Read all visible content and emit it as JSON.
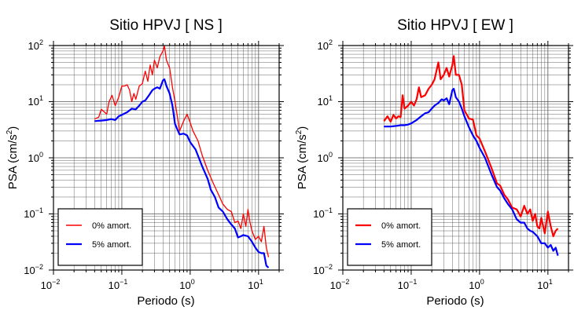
{
  "colors": {
    "undamped": "#ff0000",
    "damped": "#0000ff",
    "frame": "#000000",
    "grid": "#555555"
  },
  "chart_data": [
    {
      "type": "line",
      "title": "Sitio HPVJ [ NS ]",
      "xlabel": "Periodo (s)",
      "ylabel_main": "PSA (cm/s",
      "ylabel_sup": "2",
      "ylabel_close": ")",
      "xscale": "log",
      "yscale": "log",
      "xlim": [
        0.01,
        20
      ],
      "ylim": [
        0.01,
        100
      ],
      "x_ticks": [
        {
          "base": "10",
          "exp": "−2"
        },
        {
          "base": "10",
          "exp": "−1"
        },
        {
          "base": "10",
          "exp": "0"
        },
        {
          "base": "10",
          "exp": "1"
        }
      ],
      "y_ticks": [
        {
          "base": "10",
          "exp": "−2"
        },
        {
          "base": "10",
          "exp": "−1"
        },
        {
          "base": "10",
          "exp": "0"
        },
        {
          "base": "10",
          "exp": "1"
        },
        {
          "base": "10",
          "exp": "2"
        }
      ],
      "grid": true,
      "legend_position": "bottom-left",
      "series": [
        {
          "name": "0% amort.",
          "color": "#ff0000",
          "points": [
            [
              0.04,
              4.9
            ],
            [
              0.046,
              5.3
            ],
            [
              0.05,
              7.3
            ],
            [
              0.055,
              6.6
            ],
            [
              0.06,
              6.0
            ],
            [
              0.065,
              10
            ],
            [
              0.072,
              13
            ],
            [
              0.08,
              8.5
            ],
            [
              0.09,
              12
            ],
            [
              0.1,
              19
            ],
            [
              0.11,
              19
            ],
            [
              0.12,
              20
            ],
            [
              0.13,
              16
            ],
            [
              0.14,
              10
            ],
            [
              0.15,
              14
            ],
            [
              0.16,
              11
            ],
            [
              0.18,
              19
            ],
            [
              0.2,
              21
            ],
            [
              0.22,
              35
            ],
            [
              0.24,
              23
            ],
            [
              0.26,
              45
            ],
            [
              0.28,
              30
            ],
            [
              0.3,
              55
            ],
            [
              0.33,
              40
            ],
            [
              0.36,
              63
            ],
            [
              0.4,
              80
            ],
            [
              0.42,
              98
            ],
            [
              0.45,
              55
            ],
            [
              0.5,
              40
            ],
            [
              0.55,
              18
            ],
            [
              0.6,
              10
            ],
            [
              0.7,
              3.0
            ],
            [
              0.8,
              4.5
            ],
            [
              0.9,
              6.0
            ],
            [
              1.0,
              4.2
            ],
            [
              1.1,
              3.0
            ],
            [
              1.3,
              2.0
            ],
            [
              1.5,
              1.1
            ],
            [
              1.8,
              0.6
            ],
            [
              2.2,
              0.34
            ],
            [
              2.6,
              0.22
            ],
            [
              3.0,
              0.15
            ],
            [
              3.5,
              0.12
            ],
            [
              4.0,
              0.11
            ],
            [
              4.5,
              0.07
            ],
            [
              5.0,
              0.075
            ],
            [
              5.5,
              0.055
            ],
            [
              6.0,
              0.1
            ],
            [
              6.5,
              0.06
            ],
            [
              7.0,
              0.12
            ],
            [
              7.5,
              0.07
            ],
            [
              8.0,
              0.05
            ],
            [
              9.0,
              0.035
            ],
            [
              10.0,
              0.04
            ],
            [
              11.0,
              0.032
            ],
            [
              12.0,
              0.06
            ],
            [
              13.0,
              0.025
            ],
            [
              14.0,
              0.017
            ]
          ]
        },
        {
          "name": "5% amort.",
          "color": "#0000ff",
          "points": [
            [
              0.04,
              4.5
            ],
            [
              0.05,
              4.6
            ],
            [
              0.06,
              4.7
            ],
            [
              0.07,
              4.9
            ],
            [
              0.08,
              4.7
            ],
            [
              0.09,
              5.5
            ],
            [
              0.1,
              5.8
            ],
            [
              0.12,
              6.5
            ],
            [
              0.14,
              7.5
            ],
            [
              0.16,
              7.3
            ],
            [
              0.18,
              8.5
            ],
            [
              0.2,
              10
            ],
            [
              0.22,
              10.5
            ],
            [
              0.25,
              13
            ],
            [
              0.28,
              16
            ],
            [
              0.3,
              17
            ],
            [
              0.33,
              18
            ],
            [
              0.36,
              17
            ],
            [
              0.4,
              24
            ],
            [
              0.42,
              25
            ],
            [
              0.45,
              19
            ],
            [
              0.5,
              14
            ],
            [
              0.55,
              8.5
            ],
            [
              0.6,
              4.0
            ],
            [
              0.7,
              2.6
            ],
            [
              0.8,
              2.7
            ],
            [
              0.9,
              2.5
            ],
            [
              1.0,
              1.9
            ],
            [
              1.2,
              1.4
            ],
            [
              1.5,
              0.7
            ],
            [
              1.8,
              0.42
            ],
            [
              2.0,
              0.27
            ],
            [
              2.3,
              0.2
            ],
            [
              2.6,
              0.13
            ],
            [
              3.0,
              0.11
            ],
            [
              3.5,
              0.08
            ],
            [
              4.0,
              0.065
            ],
            [
              4.5,
              0.055
            ],
            [
              5.0,
              0.038
            ],
            [
              5.5,
              0.04
            ],
            [
              6.0,
              0.042
            ],
            [
              7.0,
              0.04
            ],
            [
              8.0,
              0.032
            ],
            [
              9.0,
              0.025
            ],
            [
              10.0,
              0.021
            ],
            [
              11.0,
              0.02
            ],
            [
              12.0,
              0.02
            ],
            [
              13.0,
              0.012
            ],
            [
              14.0,
              0.011
            ]
          ]
        }
      ]
    },
    {
      "type": "line",
      "title": "Sitio HPVJ [ EW ]",
      "xlabel": "Periodo (s)",
      "ylabel_main": "PSA (cm/s",
      "ylabel_sup": "2",
      "ylabel_close": ")",
      "xscale": "log",
      "yscale": "log",
      "xlim": [
        0.01,
        20
      ],
      "ylim": [
        0.01,
        100
      ],
      "x_ticks": [
        {
          "base": "10",
          "exp": "−2"
        },
        {
          "base": "10",
          "exp": "−1"
        },
        {
          "base": "10",
          "exp": "0"
        },
        {
          "base": "10",
          "exp": "1"
        }
      ],
      "y_ticks": [
        {
          "base": "10",
          "exp": "−2"
        },
        {
          "base": "10",
          "exp": "−1"
        },
        {
          "base": "10",
          "exp": "0"
        },
        {
          "base": "10",
          "exp": "1"
        },
        {
          "base": "10",
          "exp": "2"
        }
      ],
      "grid": true,
      "legend_position": "bottom-left",
      "series": [
        {
          "name": "0% amort.",
          "color": "#ff0000",
          "points": [
            [
              0.04,
              4.5
            ],
            [
              0.045,
              5.5
            ],
            [
              0.05,
              4.4
            ],
            [
              0.055,
              5.8
            ],
            [
              0.06,
              5.0
            ],
            [
              0.065,
              5.5
            ],
            [
              0.07,
              5.3
            ],
            [
              0.075,
              13
            ],
            [
              0.08,
              7.5
            ],
            [
              0.09,
              8.5
            ],
            [
              0.1,
              10
            ],
            [
              0.11,
              8.5
            ],
            [
              0.12,
              11
            ],
            [
              0.13,
              18
            ],
            [
              0.14,
              12
            ],
            [
              0.16,
              13
            ],
            [
              0.18,
              17
            ],
            [
              0.2,
              20
            ],
            [
              0.22,
              25
            ],
            [
              0.25,
              50
            ],
            [
              0.27,
              25
            ],
            [
              0.3,
              30
            ],
            [
              0.33,
              40
            ],
            [
              0.36,
              28
            ],
            [
              0.4,
              45
            ],
            [
              0.42,
              65
            ],
            [
              0.45,
              30
            ],
            [
              0.5,
              30
            ],
            [
              0.55,
              20
            ],
            [
              0.6,
              7.0
            ],
            [
              0.7,
              5.0
            ],
            [
              0.8,
              4.8
            ],
            [
              0.9,
              2.5
            ],
            [
              1.0,
              2.2
            ],
            [
              1.2,
              1.3
            ],
            [
              1.5,
              0.65
            ],
            [
              1.8,
              0.35
            ],
            [
              2.0,
              0.32
            ],
            [
              2.3,
              0.22
            ],
            [
              2.6,
              0.18
            ],
            [
              3.0,
              0.13
            ],
            [
              3.5,
              0.12
            ],
            [
              4.0,
              0.09
            ],
            [
              4.5,
              0.14
            ],
            [
              5.0,
              0.1
            ],
            [
              5.5,
              0.12
            ],
            [
              6.0,
              0.075
            ],
            [
              6.5,
              0.1
            ],
            [
              7.0,
              0.06
            ],
            [
              7.5,
              0.055
            ],
            [
              8.0,
              0.085
            ],
            [
              9.0,
              0.045
            ],
            [
              10.0,
              0.11
            ],
            [
              11.0,
              0.06
            ],
            [
              12.0,
              0.04
            ],
            [
              13.0,
              0.05
            ],
            [
              14.0,
              0.055
            ]
          ]
        },
        {
          "name": "5% amort.",
          "color": "#0000ff",
          "points": [
            [
              0.04,
              3.6
            ],
            [
              0.05,
              3.6
            ],
            [
              0.06,
              3.7
            ],
            [
              0.07,
              3.8
            ],
            [
              0.08,
              3.8
            ],
            [
              0.09,
              3.9
            ],
            [
              0.1,
              4.1
            ],
            [
              0.12,
              4.7
            ],
            [
              0.14,
              5.5
            ],
            [
              0.16,
              6.2
            ],
            [
              0.18,
              6.5
            ],
            [
              0.2,
              7.5
            ],
            [
              0.22,
              8.5
            ],
            [
              0.25,
              9.5
            ],
            [
              0.28,
              11
            ],
            [
              0.3,
              10.5
            ],
            [
              0.33,
              11.5
            ],
            [
              0.36,
              9.0
            ],
            [
              0.4,
              16
            ],
            [
              0.42,
              17
            ],
            [
              0.45,
              12
            ],
            [
              0.5,
              10
            ],
            [
              0.55,
              7.5
            ],
            [
              0.6,
              5.5
            ],
            [
              0.7,
              3.5
            ],
            [
              0.8,
              2.5
            ],
            [
              0.9,
              2.0
            ],
            [
              1.0,
              1.5
            ],
            [
              1.2,
              1.0
            ],
            [
              1.5,
              0.5
            ],
            [
              1.8,
              0.3
            ],
            [
              2.0,
              0.26
            ],
            [
              2.3,
              0.19
            ],
            [
              2.6,
              0.15
            ],
            [
              3.0,
              0.12
            ],
            [
              3.5,
              0.08
            ],
            [
              4.0,
              0.07
            ],
            [
              4.5,
              0.07
            ],
            [
              5.0,
              0.055
            ],
            [
              5.5,
              0.05
            ],
            [
              6.0,
              0.048
            ],
            [
              7.0,
              0.04
            ],
            [
              8.0,
              0.03
            ],
            [
              9.0,
              0.03
            ],
            [
              10.0,
              0.025
            ],
            [
              11.0,
              0.028
            ],
            [
              12.0,
              0.022
            ],
            [
              13.0,
              0.025
            ],
            [
              14.0,
              0.018
            ]
          ]
        }
      ]
    }
  ]
}
